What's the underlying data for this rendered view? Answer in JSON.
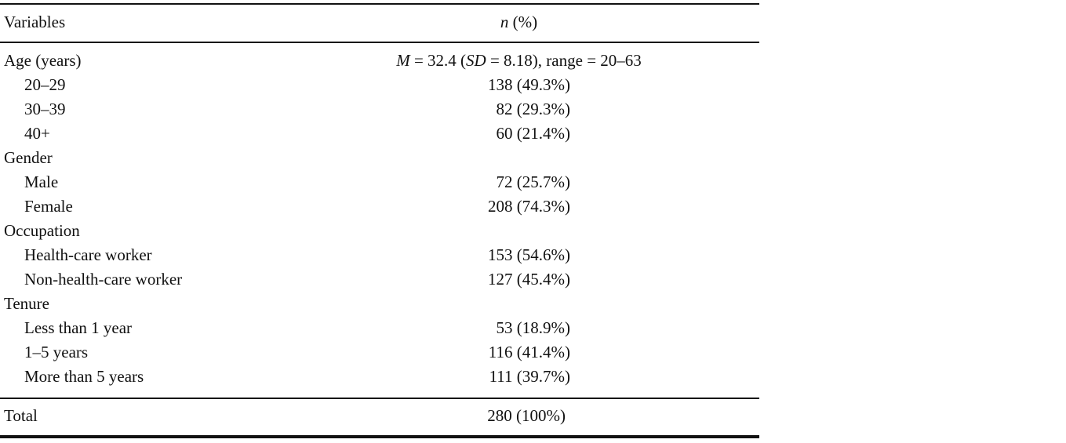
{
  "table": {
    "header": {
      "variable": "Variables",
      "value": [
        {
          "text": "n",
          "italic": true
        },
        {
          "text": " (%)"
        }
      ]
    },
    "groups": [
      {
        "label": "Age (years)",
        "summary": [
          {
            "text": "M",
            "italic": true
          },
          {
            "text": " = 32.4 ("
          },
          {
            "text": "SD",
            "italic": true
          },
          {
            "text": " = 8.18), range = 20–63"
          }
        ],
        "items": [
          {
            "label": "20–29",
            "value": "138 (49.3%)"
          },
          {
            "label": "30–39",
            "value": "82 (29.3%)"
          },
          {
            "label": "40+",
            "value": "60 (21.4%)"
          }
        ]
      },
      {
        "label": "Gender",
        "items": [
          {
            "label": "Male",
            "value": "72 (25.7%)"
          },
          {
            "label": "Female",
            "value": "208 (74.3%)"
          }
        ]
      },
      {
        "label": "Occupation",
        "items": [
          {
            "label": "Health-care worker",
            "value": "153 (54.6%)"
          },
          {
            "label": "Non-health-care worker",
            "value": "127 (45.4%)"
          }
        ]
      },
      {
        "label": "Tenure",
        "items": [
          {
            "label": "Less than 1 year",
            "value": "53 (18.9%)"
          },
          {
            "label": "1–5 years",
            "value": "116 (41.4%)"
          },
          {
            "label": "More than 5 years",
            "value": "111 (39.7%)"
          }
        ]
      }
    ],
    "total": {
      "label": "Total",
      "value": "280 (100%)"
    }
  }
}
